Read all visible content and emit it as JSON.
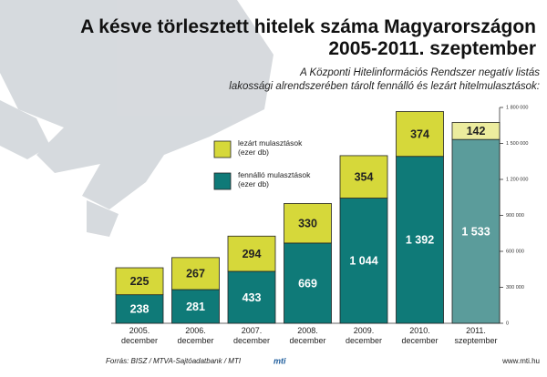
{
  "chart_data": {
    "type": "stacked_bar",
    "title": "A késve törlesztett hitelek száma Magyarországon\n2005-2011. szeptember",
    "subtitle": "A Központi Hitelinformációs Rendszer negatív listás\nlakossági alrendszerében tárolt fennálló és lezárt hitelmulasztások:",
    "categories": [
      "2005.\ndecember",
      "2006.\ndecember",
      "2007.\ndecember",
      "2008.\ndecember",
      "2009.\ndecember",
      "2010.\ndecember",
      "2011.\nszeptember"
    ],
    "series": [
      {
        "name": "fennálló mulasztások\n(ezer db)",
        "color": "#0f7a78",
        "colors": [
          "#0f7a78",
          "#0f7a78",
          "#0f7a78",
          "#0f7a78",
          "#0f7a78",
          "#0f7a78",
          "#5b9c9b"
        ],
        "values": [
          238000,
          281000,
          433000,
          669000,
          1044000,
          1392000,
          1533000
        ],
        "value_labels": [
          "238",
          "281",
          "433",
          "669",
          "1 044",
          "1 392",
          "1 533"
        ]
      },
      {
        "name": "lezárt mulasztások\n(ezer db)",
        "color": "#d6d83a",
        "colors": [
          "#d6d83a",
          "#d6d83a",
          "#d6d83a",
          "#d6d83a",
          "#d6d83a",
          "#d6d83a",
          "#ecec9e"
        ],
        "values": [
          225000,
          267000,
          294000,
          330000,
          354000,
          374000,
          142000
        ],
        "value_labels": [
          "225",
          "267",
          "294",
          "330",
          "354",
          "374",
          "142"
        ]
      }
    ],
    "ylim": [
      0,
      1800000
    ],
    "yticks": [
      0,
      {
        "value": 300000,
        "label": "300 000"
      },
      {
        "value": 600000,
        "label": "600 000"
      },
      {
        "value": 900000,
        "label": "900 000"
      },
      {
        "value": 1200000,
        "label": "1 200 000"
      },
      {
        "value": 1500000,
        "label": "1 500 000"
      },
      {
        "value": 1800000,
        "label": "1 800 000"
      }
    ],
    "source": "Forrás: BISZ / MTVA-Sajtóadatbank / MTI",
    "logo": "mti",
    "website": "www.mti.hu"
  }
}
